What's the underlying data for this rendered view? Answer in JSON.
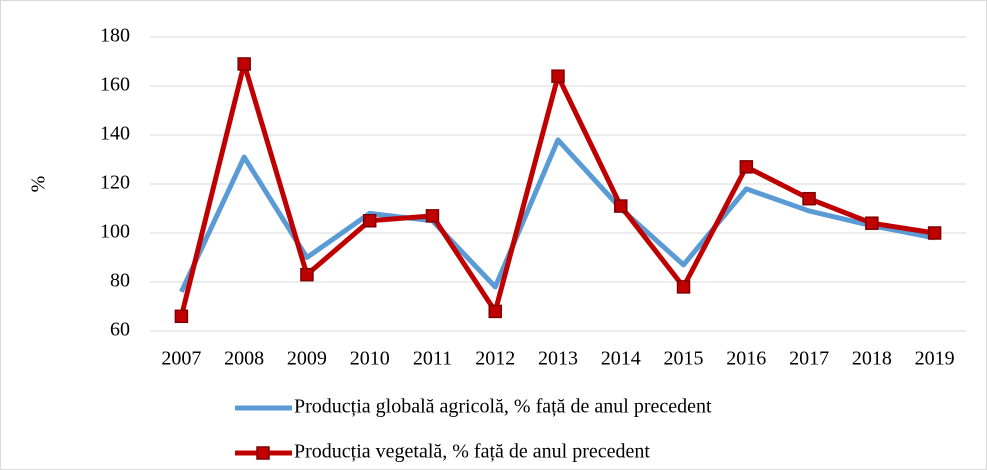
{
  "chart_data": {
    "type": "line",
    "y_label": "%",
    "categories": [
      "2007",
      "2008",
      "2009",
      "2010",
      "2011",
      "2012",
      "2013",
      "2014",
      "2015",
      "2016",
      "2017",
      "2018",
      "2019"
    ],
    "series": [
      {
        "name": "Producția globală agricolă, % față de anul precedent",
        "color": "#5b9bd5",
        "values": [
          76,
          131,
          90,
          108,
          105,
          78,
          138,
          110,
          87,
          118,
          109,
          103,
          98
        ]
      },
      {
        "name": "Producția vegetală, % față de anul precedent",
        "color": "#c00000",
        "marker": "square",
        "values": [
          66,
          169,
          83,
          105,
          107,
          68,
          164,
          111,
          78,
          127,
          114,
          104,
          100
        ]
      }
    ],
    "ylim": [
      60,
      180
    ],
    "yticks": [
      60,
      80,
      100,
      120,
      140,
      160,
      180
    ],
    "grid": true,
    "legend": "bottom"
  }
}
